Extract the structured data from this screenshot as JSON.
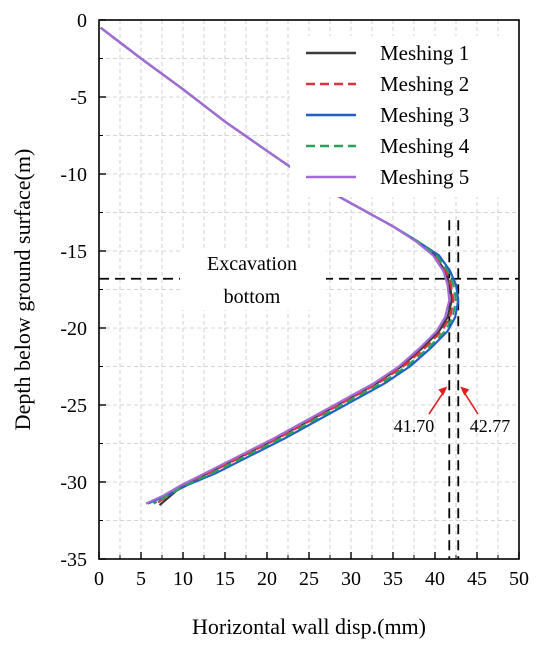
{
  "chart_data": {
    "type": "line",
    "title": "",
    "xlabel": "Horizontal wall disp.(mm)",
    "ylabel": "Depth below ground surface(m)",
    "xlim": [
      0,
      50
    ],
    "ylim": [
      -35,
      0
    ],
    "xticks": [
      0,
      5,
      10,
      15,
      20,
      25,
      30,
      35,
      40,
      45,
      50
    ],
    "yticks": [
      0,
      -5,
      -10,
      -15,
      -20,
      -25,
      -30,
      -35
    ],
    "grid": true,
    "legend_position": "top-right",
    "series": [
      {
        "name": "Meshing 1",
        "color": "#3a3a3a",
        "dash": "solid",
        "x": [
          0.2,
          5,
          10,
          15,
          20,
          24,
          28,
          32,
          35,
          38,
          40,
          41.2,
          41.8,
          42.0,
          41.5,
          40.5,
          38.5,
          36,
          33,
          29,
          25,
          21,
          17,
          13,
          10,
          8.5,
          7.2
        ],
        "y": [
          -0.5,
          -2.5,
          -4.5,
          -6.6,
          -8.5,
          -10.0,
          -11.3,
          -12.5,
          -13.4,
          -14.4,
          -15.3,
          -16.3,
          -17.2,
          -18.2,
          -19.3,
          -20.2,
          -21.3,
          -22.5,
          -23.6,
          -24.8,
          -26.0,
          -27.2,
          -28.3,
          -29.4,
          -30.2,
          -30.9,
          -31.5
        ]
      },
      {
        "name": "Meshing 2",
        "color": "#e03040",
        "dash": "dashed",
        "x": [
          0.2,
          5,
          10,
          15,
          20,
          24,
          28,
          32,
          35,
          38,
          40,
          41.3,
          41.9,
          42.2,
          41.8,
          40.8,
          38.8,
          36.2,
          33.2,
          29.2,
          25.2,
          21.2,
          17.2,
          13.2,
          10.2,
          8.2,
          6.8
        ],
        "y": [
          -0.5,
          -2.5,
          -4.5,
          -6.6,
          -8.5,
          -10.0,
          -11.3,
          -12.5,
          -13.4,
          -14.4,
          -15.3,
          -16.3,
          -17.2,
          -18.2,
          -19.3,
          -20.2,
          -21.3,
          -22.5,
          -23.6,
          -24.8,
          -26.0,
          -27.2,
          -28.3,
          -29.4,
          -30.2,
          -30.9,
          -31.4
        ]
      },
      {
        "name": "Meshing 3",
        "color": "#1f5fc8",
        "dash": "solid",
        "x": [
          0.2,
          5,
          10,
          15,
          20,
          24,
          28,
          32,
          35,
          38,
          40.5,
          41.8,
          42.5,
          42.77,
          42.4,
          41.5,
          39.5,
          37.0,
          34.0,
          30.0,
          26.0,
          22.0,
          18.0,
          14.0,
          10.5,
          8.0,
          5.8
        ],
        "y": [
          -0.5,
          -2.5,
          -4.5,
          -6.6,
          -8.5,
          -10.0,
          -11.3,
          -12.5,
          -13.4,
          -14.4,
          -15.3,
          -16.3,
          -17.2,
          -18.2,
          -19.3,
          -20.2,
          -21.3,
          -22.5,
          -23.6,
          -24.8,
          -26.0,
          -27.2,
          -28.3,
          -29.4,
          -30.2,
          -30.9,
          -31.4
        ]
      },
      {
        "name": "Meshing 4",
        "color": "#2aa05a",
        "dash": "dashed",
        "x": [
          0.2,
          5,
          10,
          15,
          20,
          24,
          28,
          32,
          35,
          38,
          40.2,
          41.5,
          42.2,
          42.5,
          42.1,
          41.2,
          39.2,
          36.6,
          33.6,
          29.6,
          25.6,
          21.6,
          17.6,
          13.6,
          10.3,
          8.1,
          6.5
        ],
        "y": [
          -0.5,
          -2.5,
          -4.5,
          -6.6,
          -8.5,
          -10.0,
          -11.3,
          -12.5,
          -13.4,
          -14.4,
          -15.3,
          -16.3,
          -17.2,
          -18.2,
          -19.3,
          -20.2,
          -21.3,
          -22.5,
          -23.6,
          -24.8,
          -26.0,
          -27.2,
          -28.3,
          -29.4,
          -30.2,
          -30.9,
          -31.4
        ]
      },
      {
        "name": "Meshing 5",
        "color": "#a66ad8",
        "dash": "solid",
        "x": [
          0.2,
          5,
          10,
          15,
          20,
          24,
          28,
          32,
          35,
          37.8,
          39.8,
          41.0,
          41.5,
          41.7,
          41.2,
          40.2,
          38.2,
          35.7,
          32.7,
          28.7,
          24.7,
          20.7,
          16.7,
          12.7,
          9.8,
          7.6,
          5.6
        ],
        "y": [
          -0.5,
          -2.5,
          -4.5,
          -6.6,
          -8.5,
          -10.0,
          -11.3,
          -12.5,
          -13.4,
          -14.4,
          -15.3,
          -16.3,
          -17.2,
          -18.2,
          -19.3,
          -20.2,
          -21.3,
          -22.5,
          -23.6,
          -24.8,
          -26.0,
          -27.2,
          -28.3,
          -29.4,
          -30.2,
          -30.9,
          -31.4
        ]
      }
    ],
    "reference_lines": {
      "excavation_bottom_depth": -16.8,
      "vertical_at_x": [
        41.7,
        42.77
      ]
    },
    "annotations": {
      "excavation_line1": "Excavation",
      "excavation_line2": "bottom",
      "min_label": "41.70",
      "max_label": "42.77",
      "arrow_color": "#e02020"
    }
  }
}
